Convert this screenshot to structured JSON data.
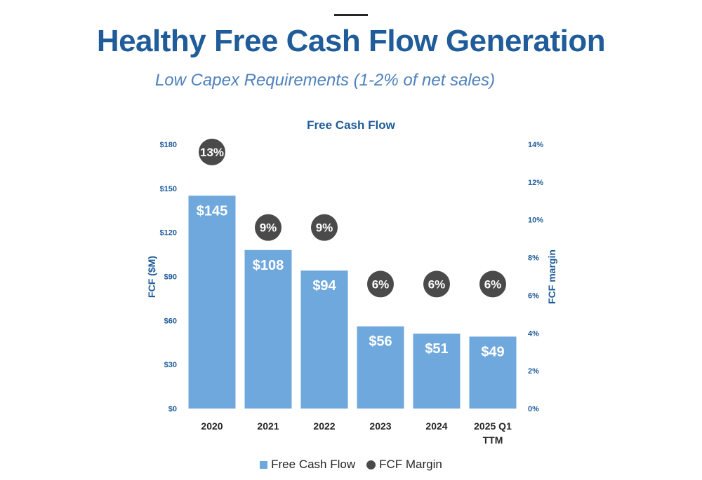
{
  "header": {
    "title": "Healthy Free Cash Flow Generation",
    "subtitle": "Low Capex Requirements (1-2% of net sales)"
  },
  "colors": {
    "title": "#1f5c99",
    "subtitle": "#4f81bd",
    "bar": "#6fa8dc",
    "marker": "#4a4a4a",
    "axis_text": "#1f5c99"
  },
  "chart_data": {
    "type": "bar",
    "title": "Free Cash Flow",
    "categories": [
      "2020",
      "2021",
      "2022",
      "2023",
      "2024",
      "2025 Q1 TTM"
    ],
    "series": [
      {
        "name": "Free Cash Flow",
        "type": "bar",
        "axis": "left",
        "values": [
          145,
          108,
          94,
          56,
          51,
          49
        ],
        "labels": [
          "$145",
          "$108",
          "$94",
          "$56",
          "$51",
          "$49"
        ]
      },
      {
        "name": "FCF Margin",
        "type": "marker",
        "axis": "right",
        "values": [
          13,
          9,
          9,
          6,
          6,
          6
        ],
        "labels": [
          "13%",
          "9%",
          "9%",
          "6%",
          "6%",
          "6%"
        ]
      }
    ],
    "ylabel": "FCF ($M)",
    "y2label": "FCF margin",
    "ylim": [
      0,
      180
    ],
    "y2lim": [
      0,
      14
    ],
    "yticks": [
      "$0",
      "$30",
      "$60",
      "$90",
      "$120",
      "$150",
      "$180"
    ],
    "y2ticks": [
      "0%",
      "2%",
      "4%",
      "6%",
      "8%",
      "10%",
      "12%",
      "14%"
    ],
    "grid": false,
    "legend_position": "bottom"
  }
}
